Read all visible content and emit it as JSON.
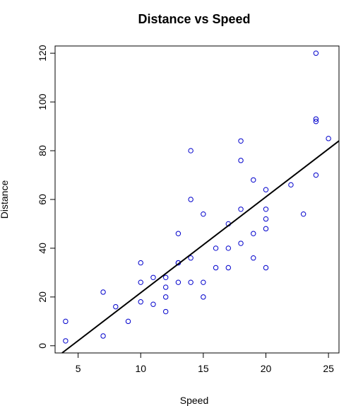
{
  "chart_data": {
    "type": "scatter",
    "title": "Distance vs Speed",
    "xlabel": "Speed",
    "ylabel": "Distance",
    "xlim": [
      3.16,
      25.84
    ],
    "ylim": [
      -2.96,
      122.96
    ],
    "xticks": [
      5,
      10,
      15,
      20,
      25
    ],
    "yticks": [
      0,
      20,
      40,
      60,
      80,
      100,
      120
    ],
    "grid": false,
    "point_color": "#0000cc",
    "line_color": "#000000",
    "series": [
      {
        "x": [
          4,
          4,
          7,
          7,
          8,
          9,
          10,
          10,
          10,
          11,
          11,
          12,
          12,
          12,
          12,
          13,
          13,
          13,
          13,
          14,
          14,
          14,
          14,
          15,
          15,
          15,
          16,
          16,
          17,
          17,
          17,
          18,
          18,
          18,
          18,
          19,
          19,
          19,
          20,
          20,
          20,
          20,
          20,
          22,
          23,
          24,
          24,
          24,
          24,
          25
        ],
        "y": [
          2,
          10,
          4,
          22,
          16,
          10,
          18,
          26,
          34,
          17,
          28,
          14,
          20,
          24,
          28,
          26,
          34,
          34,
          46,
          26,
          36,
          60,
          80,
          20,
          26,
          54,
          32,
          40,
          32,
          40,
          50,
          42,
          56,
          76,
          84,
          36,
          46,
          68,
          32,
          48,
          52,
          56,
          64,
          66,
          54,
          70,
          92,
          93,
          120,
          85
        ]
      }
    ],
    "fit_line": {
      "intercept": -17.579,
      "slope": 3.932
    }
  }
}
